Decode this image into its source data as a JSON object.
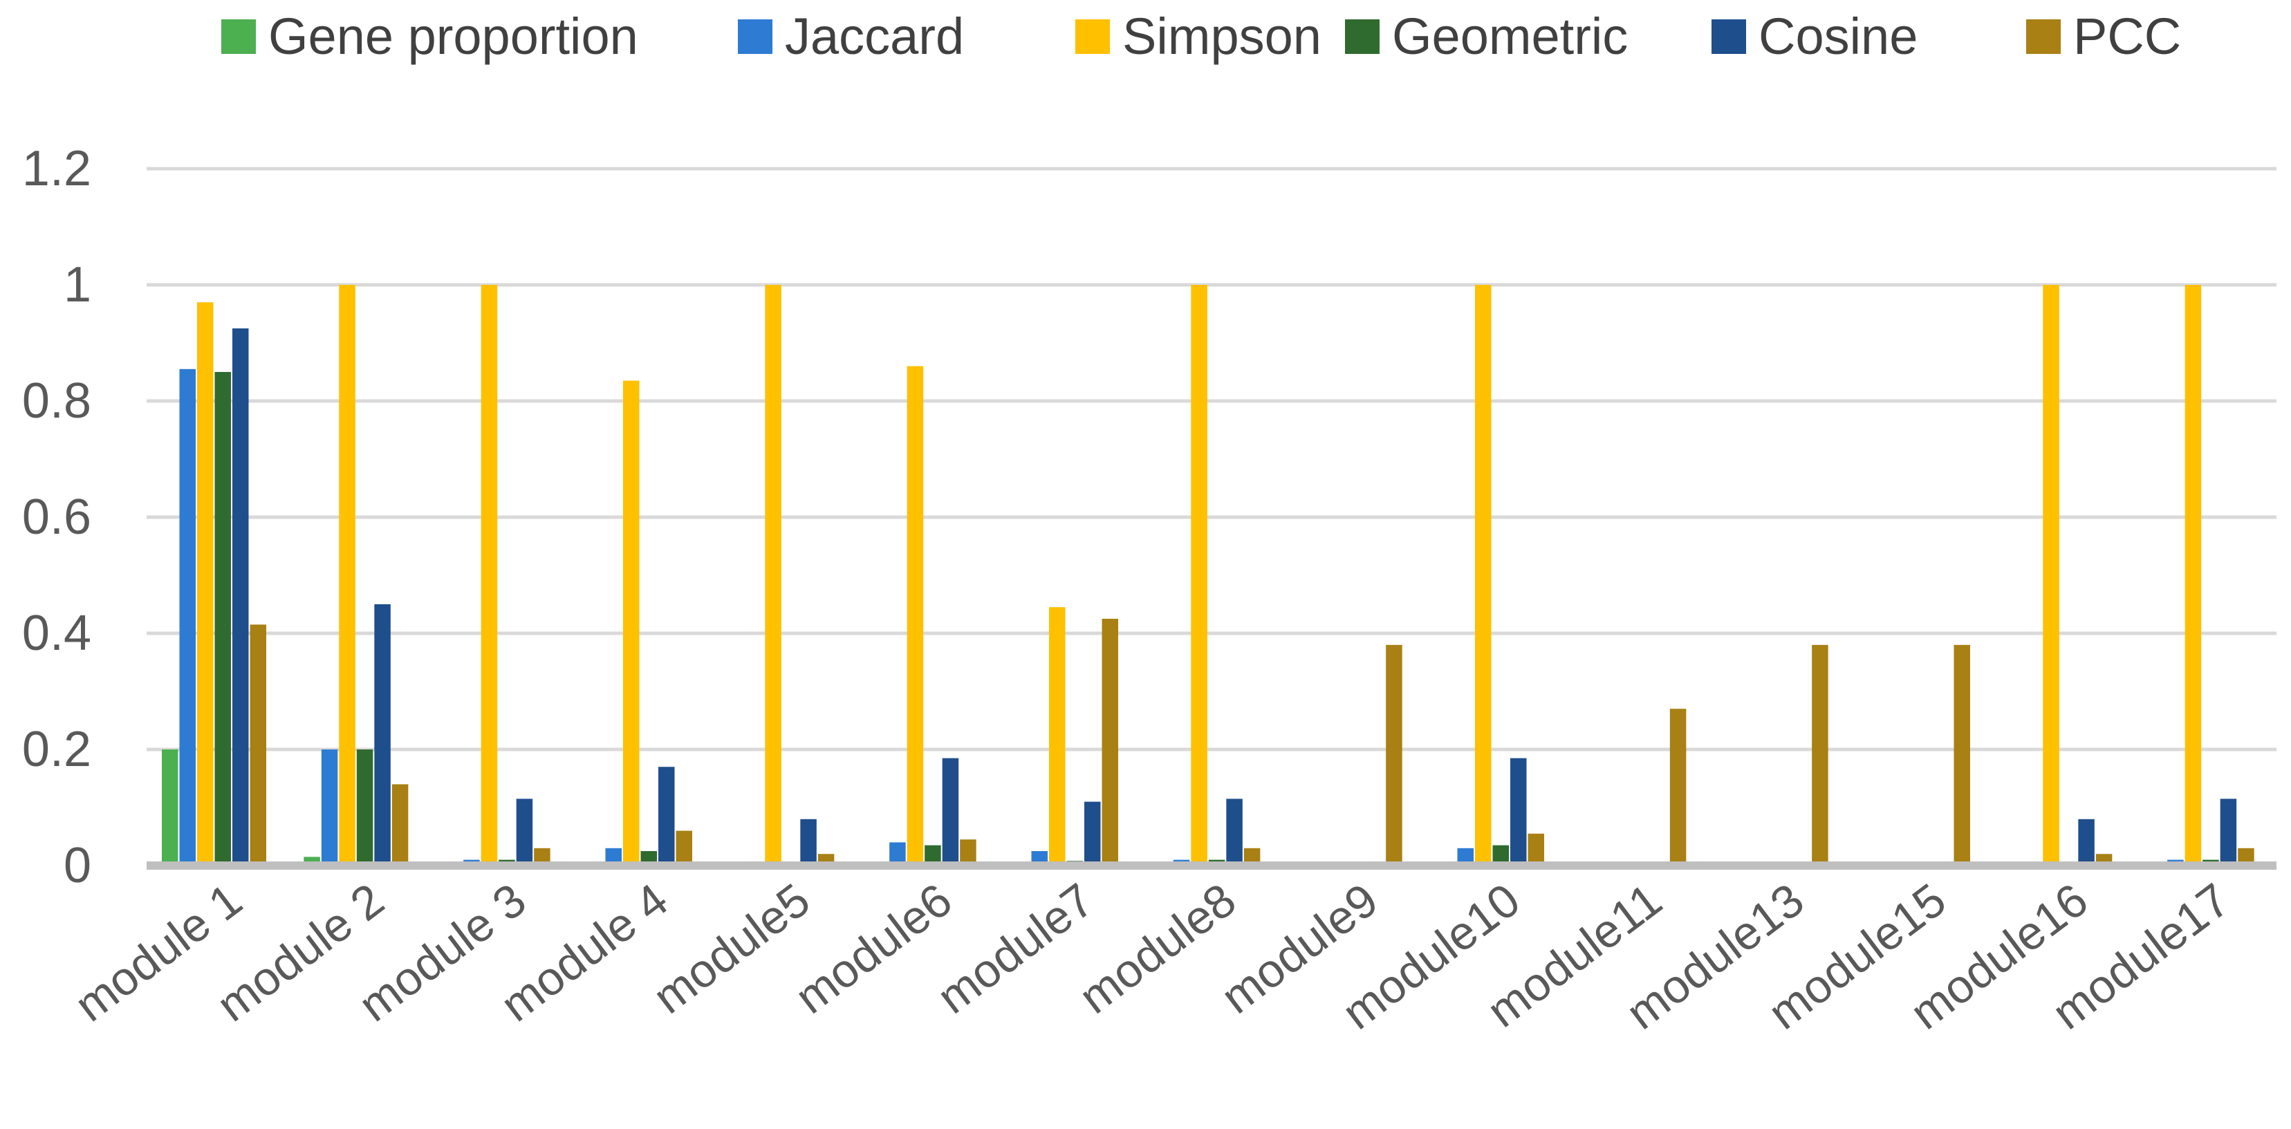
{
  "chart_data": {
    "type": "bar",
    "title": "",
    "xlabel": "",
    "ylabel": "",
    "ylim": [
      0,
      1.2
    ],
    "yticks": [
      {
        "value": 0,
        "label": "0"
      },
      {
        "value": 0.2,
        "label": "0.2"
      },
      {
        "value": 0.4,
        "label": "0.4"
      },
      {
        "value": 0.6,
        "label": "0.6"
      },
      {
        "value": 0.8,
        "label": "0.8"
      },
      {
        "value": 1,
        "label": "1"
      },
      {
        "value": 1.2,
        "label": "1.2"
      }
    ],
    "grid": true,
    "legend_position": "top",
    "categories": [
      "module 1",
      "module 2",
      "module 3",
      "module 4",
      "module5",
      "module6",
      "module7",
      "module8",
      "module9",
      "module10",
      "module11",
      "module13",
      "module15",
      "module16",
      "module17"
    ],
    "series": [
      {
        "name": "Gene proportion",
        "color": "#4CAF50",
        "values": [
          0.2,
          0.015,
          0,
          0,
          0,
          0,
          0,
          0,
          0,
          0,
          0,
          0,
          0,
          0,
          0.005
        ]
      },
      {
        "name": "Jaccard",
        "color": "#2E7BD4",
        "values": [
          0.855,
          0.2,
          0.01,
          0.03,
          0,
          0.04,
          0.025,
          0.01,
          0,
          0.03,
          0,
          0,
          0,
          0,
          0.01
        ]
      },
      {
        "name": "Simpson",
        "color": "#FFC000",
        "values": [
          0.97,
          1.0,
          1.0,
          0.835,
          1.0,
          0.86,
          0.445,
          1.0,
          0,
          1.0,
          0,
          0,
          0,
          1.0,
          1.0
        ]
      },
      {
        "name": "Geometric",
        "color": "#2F6B2F",
        "values": [
          0.85,
          0.2,
          0.01,
          0.025,
          0,
          0.035,
          0.008,
          0.01,
          0,
          0.035,
          0,
          0,
          0,
          0,
          0.01
        ]
      },
      {
        "name": "Cosine",
        "color": "#1F4E8C",
        "values": [
          0.925,
          0.45,
          0.115,
          0.17,
          0.08,
          0.185,
          0.11,
          0.115,
          0,
          0.185,
          0,
          0,
          0,
          0.08,
          0.115
        ]
      },
      {
        "name": "PCC",
        "color": "#A88014",
        "values": [
          0.415,
          0.14,
          0.03,
          0.06,
          0.02,
          0.045,
          0.425,
          0.03,
          0.38,
          0.055,
          0.27,
          0.38,
          0.38,
          0.02,
          0.03
        ]
      }
    ]
  }
}
